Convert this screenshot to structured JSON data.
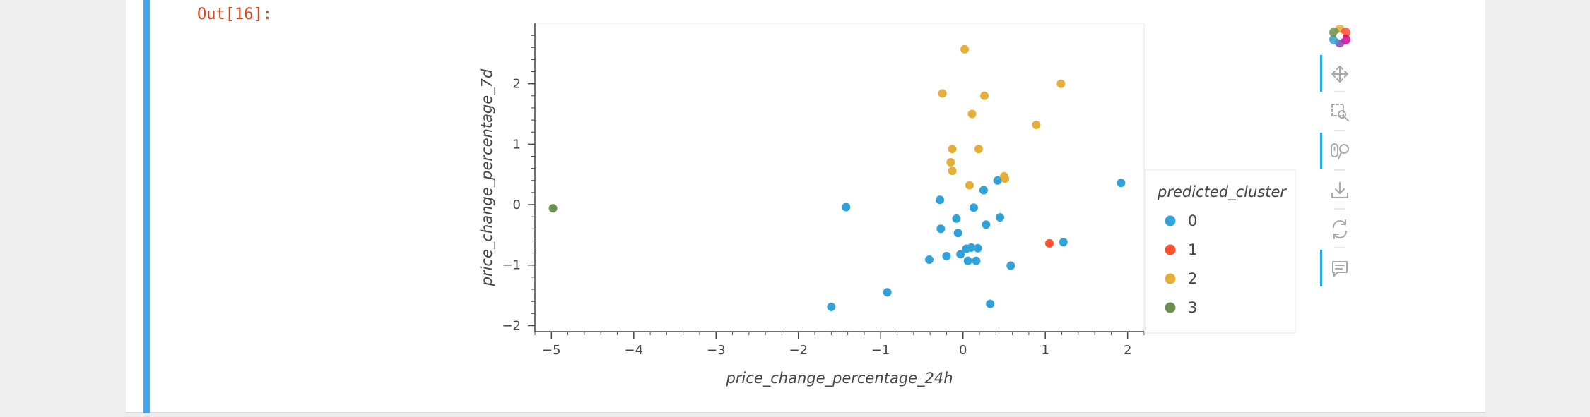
{
  "cell": {
    "prompt": "Out[16]:"
  },
  "toolbar": {
    "tools": [
      {
        "name": "pan-tool",
        "icon": "move-arrows-icon",
        "active": true
      },
      {
        "name": "box-zoom-tool",
        "icon": "box-zoom-icon",
        "active": false
      },
      {
        "name": "wheel-zoom-tool",
        "icon": "wheel-zoom-icon",
        "active": true
      },
      {
        "name": "save-tool",
        "icon": "download-icon",
        "active": false
      },
      {
        "name": "reset-tool",
        "icon": "reset-icon",
        "active": false
      },
      {
        "name": "hover-tool",
        "icon": "comment-icon",
        "active": true
      }
    ]
  },
  "chart_data": {
    "type": "scatter",
    "xlabel": "price_change_percentage_24h",
    "ylabel": "price_change_percentage_7d",
    "xlim": [
      -5.2,
      2.2
    ],
    "ylim": [
      -2.1,
      3.0
    ],
    "xticks": [
      -5,
      -4,
      -3,
      -2,
      -1,
      0,
      1,
      2
    ],
    "yticks": [
      -2,
      -1,
      0,
      1,
      2
    ],
    "legend_title": "predicted_cluster",
    "legend_position": "right",
    "grid": false,
    "series": [
      {
        "name": "0",
        "color": "#30a2da",
        "points": [
          [
            1.92,
            0.36
          ],
          [
            -1.42,
            -0.04
          ],
          [
            -1.6,
            -1.69
          ],
          [
            -0.92,
            -1.45
          ],
          [
            -0.28,
            0.08
          ],
          [
            0.25,
            0.24
          ],
          [
            0.42,
            0.4
          ],
          [
            0.13,
            -0.05
          ],
          [
            -0.08,
            -0.23
          ],
          [
            0.45,
            -0.21
          ],
          [
            -0.27,
            -0.4
          ],
          [
            -0.06,
            -0.47
          ],
          [
            0.28,
            -0.33
          ],
          [
            0.04,
            -0.73
          ],
          [
            0.1,
            -0.71
          ],
          [
            0.18,
            -0.72
          ],
          [
            -0.03,
            -0.82
          ],
          [
            -0.2,
            -0.85
          ],
          [
            -0.41,
            -0.91
          ],
          [
            0.06,
            -0.93
          ],
          [
            0.16,
            -0.93
          ],
          [
            0.58,
            -1.01
          ],
          [
            1.22,
            -0.62
          ],
          [
            0.33,
            -1.64
          ]
        ]
      },
      {
        "name": "1",
        "color": "#fc4f30",
        "points": [
          [
            1.05,
            -0.64
          ]
        ]
      },
      {
        "name": "2",
        "color": "#e5ae38",
        "points": [
          [
            0.02,
            2.57
          ],
          [
            1.19,
            2.0
          ],
          [
            -0.25,
            1.84
          ],
          [
            0.26,
            1.8
          ],
          [
            0.11,
            1.5
          ],
          [
            0.89,
            1.32
          ],
          [
            -0.13,
            0.92
          ],
          [
            0.19,
            0.92
          ],
          [
            -0.15,
            0.7
          ],
          [
            -0.13,
            0.56
          ],
          [
            0.5,
            0.47
          ],
          [
            0.51,
            0.43
          ],
          [
            0.08,
            0.32
          ]
        ]
      },
      {
        "name": "3",
        "color": "#6d904f",
        "points": [
          [
            -4.98,
            -0.06
          ]
        ]
      }
    ]
  }
}
